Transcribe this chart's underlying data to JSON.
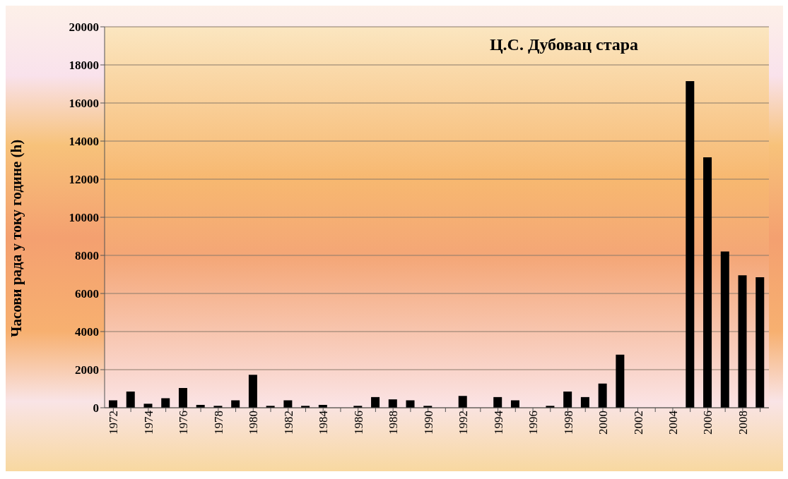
{
  "chart_data": {
    "type": "bar",
    "title": "Ц.С. Дубовац стара",
    "ylabel": "Часови рада у току године (h)",
    "categories": [
      "1972",
      null,
      "1974",
      null,
      "1976",
      null,
      "1978",
      null,
      "1980",
      null,
      "1982",
      null,
      "1984",
      null,
      "1986",
      null,
      "1988",
      null,
      "1990",
      null,
      "1992",
      null,
      "1994",
      null,
      "1996",
      null,
      "1998",
      null,
      "2000",
      null,
      "2002",
      null,
      "2004",
      null,
      "2006",
      null,
      "2008",
      null
    ],
    "values": [
      390,
      850,
      210,
      500,
      1040,
      150,
      100,
      390,
      1730,
      100,
      390,
      100,
      150,
      0,
      100,
      560,
      440,
      390,
      100,
      0,
      620,
      0,
      560,
      390,
      0,
      100,
      850,
      560,
      1270,
      2790,
      0,
      0,
      0,
      17150,
      13150,
      8200,
      6950,
      6850
    ],
    "color": "#000000",
    "ylim": [
      0,
      20000
    ],
    "yticks": [
      0,
      2000,
      4000,
      6000,
      8000,
      10000,
      12000,
      14000,
      16000,
      18000,
      20000
    ],
    "grid": "y"
  }
}
